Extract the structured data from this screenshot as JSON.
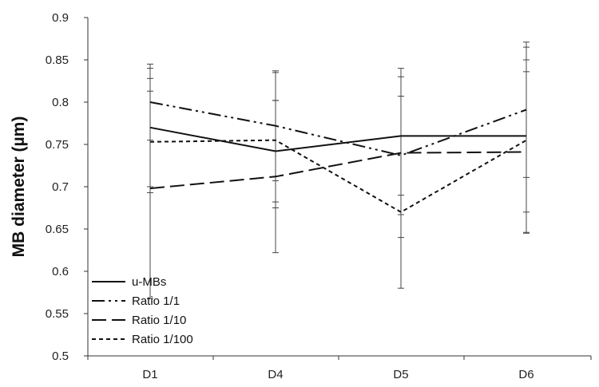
{
  "chart_data": {
    "type": "line",
    "title": "",
    "xlabel": "",
    "ylabel": "MB diameter (µm)",
    "categories": [
      "D1",
      "D4",
      "D5",
      "D6"
    ],
    "ylim": [
      0.5,
      0.9
    ],
    "yticks": [
      "0.5",
      "0.55",
      "0.6",
      "0.65",
      "0.7",
      "0.75",
      "0.8",
      "0.85",
      "0.9"
    ],
    "grid": false,
    "legend_position": "bottom-left",
    "series": [
      {
        "name": "u-MBs",
        "dash": "solid",
        "values": [
          0.77,
          0.742,
          0.76,
          0.76
        ],
        "errors": [
          0.07,
          0.06,
          0.07,
          0.09
        ]
      },
      {
        "name": "Ratio 1/1",
        "dash": "dash-dot-dot",
        "values": [
          0.8,
          0.772,
          0.737,
          0.791
        ],
        "errors": [
          0.045,
          0.065,
          0.07,
          0.08
        ]
      },
      {
        "name": "Ratio 1/10",
        "dash": "long-dash",
        "values": [
          0.698,
          0.712,
          0.74,
          0.741
        ],
        "errors": [
          0.13,
          0.09,
          0.1,
          0.095
        ]
      },
      {
        "name": "Ratio 1/100",
        "dash": "short-dash",
        "values": [
          0.753,
          0.755,
          0.67,
          0.755
        ],
        "errors": [
          0.06,
          0.08,
          0.09,
          0.11
        ]
      }
    ],
    "colors": {
      "line": "#111111",
      "axis": "#333333"
    }
  }
}
